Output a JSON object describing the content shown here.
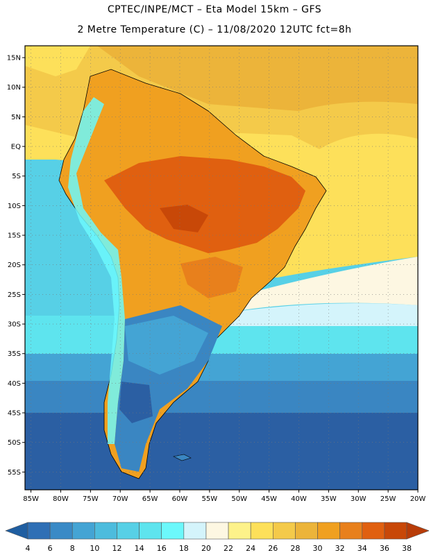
{
  "header": {
    "line1": "CPTEC/INPE/MCT –  Eta Model 15km – GFS",
    "line2": "2 Metre Temperature (C) – 11/08/2020 12UTC fct=8h"
  },
  "map": {
    "projection": "lat-lon",
    "lon_range": [
      -86,
      -20
    ],
    "lat_range": [
      -58,
      17
    ],
    "lat_ticks": [
      {
        "value": 15,
        "label": "15N"
      },
      {
        "value": 10,
        "label": "10N"
      },
      {
        "value": 5,
        "label": "5N"
      },
      {
        "value": 0,
        "label": "EQ"
      },
      {
        "value": -5,
        "label": "5S"
      },
      {
        "value": -10,
        "label": "10S"
      },
      {
        "value": -15,
        "label": "15S"
      },
      {
        "value": -20,
        "label": "20S"
      },
      {
        "value": -25,
        "label": "25S"
      },
      {
        "value": -30,
        "label": "30S"
      },
      {
        "value": -35,
        "label": "35S"
      },
      {
        "value": -40,
        "label": "40S"
      },
      {
        "value": -45,
        "label": "45S"
      },
      {
        "value": -50,
        "label": "50S"
      },
      {
        "value": -55,
        "label": "55S"
      }
    ],
    "lon_ticks": [
      {
        "value": -85,
        "label": "85W"
      },
      {
        "value": -80,
        "label": "80W"
      },
      {
        "value": -75,
        "label": "75W"
      },
      {
        "value": -70,
        "label": "70W"
      },
      {
        "value": -65,
        "label": "65W"
      },
      {
        "value": -60,
        "label": "60W"
      },
      {
        "value": -55,
        "label": "55W"
      },
      {
        "value": -50,
        "label": "50W"
      },
      {
        "value": -45,
        "label": "45W"
      },
      {
        "value": -40,
        "label": "40W"
      },
      {
        "value": -35,
        "label": "35W"
      },
      {
        "value": -30,
        "label": "30W"
      },
      {
        "value": -25,
        "label": "25W"
      },
      {
        "value": -20,
        "label": "20W"
      }
    ]
  },
  "colorbar": {
    "values": [
      "4",
      "6",
      "8",
      "10",
      "12",
      "14",
      "16",
      "18",
      "20",
      "22",
      "24",
      "26",
      "28",
      "30",
      "32",
      "34",
      "36",
      "38"
    ],
    "colors": [
      "#1f5ea1",
      "#2f6fb5",
      "#3a8ac6",
      "#44a4d4",
      "#4dbcdd",
      "#57d0e6",
      "#5ee4ee",
      "#6cf8fb",
      "#d4f4fb",
      "#fdf7e2",
      "#fdf28a",
      "#fde05a",
      "#f4ca4a",
      "#ecb43a",
      "#f0a020",
      "#e8801c",
      "#e06010",
      "#c84808",
      "#b83c08"
    ]
  }
}
